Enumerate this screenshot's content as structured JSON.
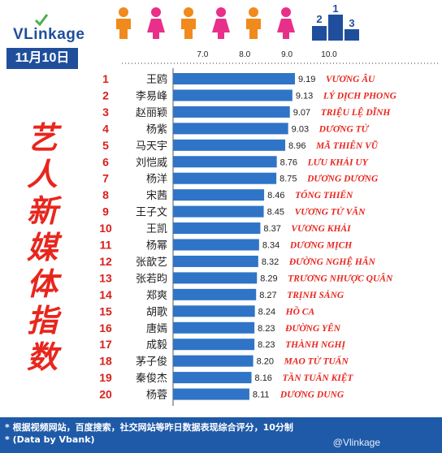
{
  "brand": {
    "name": "VLinkage"
  },
  "date_label": "11月10日",
  "side_title": [
    "艺",
    "人",
    "新",
    "媒",
    "体",
    "指",
    "数"
  ],
  "colors": {
    "bar": "#2f74c6",
    "rank": "#d8201c",
    "name": "#222222",
    "vn_name": "#e8261d",
    "footer_bg": "#1f5aa8",
    "badge_bg": "#1f4f9c"
  },
  "icons": {
    "logo": "check-icon",
    "people": "people-icon",
    "podium": "podium-icon"
  },
  "chart_data": {
    "type": "bar",
    "orientation": "horizontal",
    "xlim": [
      6.3,
      10.0
    ],
    "xticks": [
      "7.0",
      "8.0",
      "9.0",
      "10.0"
    ],
    "grid": false,
    "ranks": [
      "1",
      "2",
      "3",
      "4",
      "5",
      "6",
      "7",
      "8",
      "9",
      "10",
      "11",
      "12",
      "13",
      "14",
      "15",
      "16",
      "17",
      "18",
      "19",
      "20"
    ],
    "categories": [
      "王鸥",
      "李易峰",
      "赵丽颖",
      "杨紫",
      "马天宇",
      "刘恺威",
      "杨洋",
      "宋茜",
      "王子文",
      "王凯",
      "杨幂",
      "张歆艺",
      "张若昀",
      "郑爽",
      "胡歌",
      "唐嫣",
      "成毅",
      "茅子俊",
      "秦俊杰",
      "杨蓉"
    ],
    "values": [
      9.19,
      9.13,
      9.07,
      9.03,
      8.96,
      8.76,
      8.75,
      8.46,
      8.45,
      8.37,
      8.34,
      8.32,
      8.29,
      8.27,
      8.24,
      8.23,
      8.23,
      8.2,
      8.16,
      8.11
    ],
    "value_labels": [
      "9.19",
      "9.13",
      "9.07",
      "9.03",
      "8.96",
      "8.76",
      "8.75",
      "8.46",
      "8.45",
      "8.37",
      "8.34",
      "8.32",
      "8.29",
      "8.27",
      "8.24",
      "8.23",
      "8.23",
      "8.20",
      "8.16",
      "8.11"
    ],
    "annotations": [
      "VƯƠNG ÂU",
      "LÝ DỊCH PHONG",
      "TRIỆU LỆ DĨNH",
      "DƯƠNG TỬ",
      "MÃ THIÊN VŨ",
      "LƯU KHẢI UY",
      "DƯƠNG DƯƠNG",
      "TỐNG THIẾN",
      "VƯƠNG TỬ VĂN",
      "VƯƠNG KHẢI",
      "DƯƠNG MỊCH",
      "ĐƯỜNG NGHỆ HÂN",
      "TRƯƠNG NHƯỢC QUÂN",
      "TRỊNH SẢNG",
      "HỒ CA",
      "ĐƯỜNG YÊN",
      "THÀNH NGHỊ",
      "MAO TỬ TUẤN",
      "TẦN TUẤN KIỆT",
      "DƯƠNG DUNG"
    ]
  },
  "footer": {
    "note1": "* 根据视频网站，百度搜索，社交网站等昨日数据表现综合评分，10分制",
    "note2": "* (Data by Vbank)",
    "watermark": "@Vlinkage"
  }
}
